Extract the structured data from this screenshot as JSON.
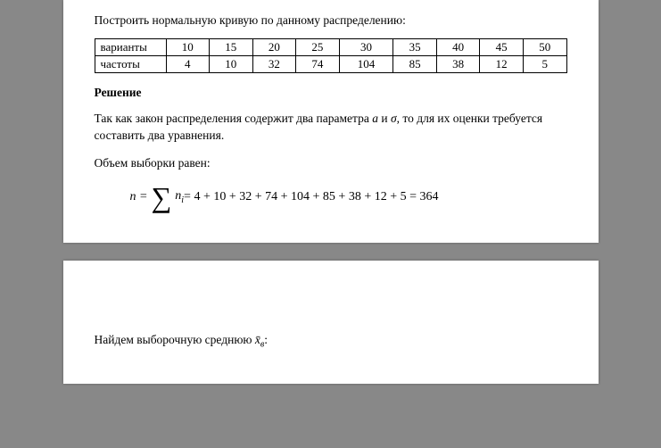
{
  "intro": "Построить нормальную кривую по данному распределению:",
  "table": {
    "row1_label": "варианты",
    "row2_label": "частоты",
    "variants": [
      "10",
      "15",
      "20",
      "25",
      "30",
      "35",
      "40",
      "45",
      "50"
    ],
    "frequencies": [
      "4",
      "10",
      "32",
      "74",
      "104",
      "85",
      "38",
      "12",
      "5"
    ]
  },
  "solution_title": "Решение",
  "para1_part1": "Так как закон распределения содержит два параметра ",
  "para1_var1": "a",
  "para1_part2": " и ",
  "para1_var2": "σ",
  "para1_part3": ", то для их оценки требуется составить два уравнения.",
  "para2": "Объем выборки равен:",
  "formula": {
    "lhs": "n = ",
    "sum_expr_pre": "n",
    "sum_expr_sub": "i",
    "equals": " = 4 + 10 + 32 + 74 + 104 + 85 + 38 + 12 + 5 = 364"
  },
  "para3_part1": "Найдем выборочную  среднюю ",
  "para3_var": "x̄",
  "para3_sub": "в",
  "para3_part2": ":",
  "styling": {
    "page_background": "#ffffff",
    "body_background": "#888888",
    "border_color": "#000000",
    "font_family": "Times New Roman",
    "base_font_size": 13.5,
    "formula_font_size": 14,
    "sigma_font_size": 32
  }
}
